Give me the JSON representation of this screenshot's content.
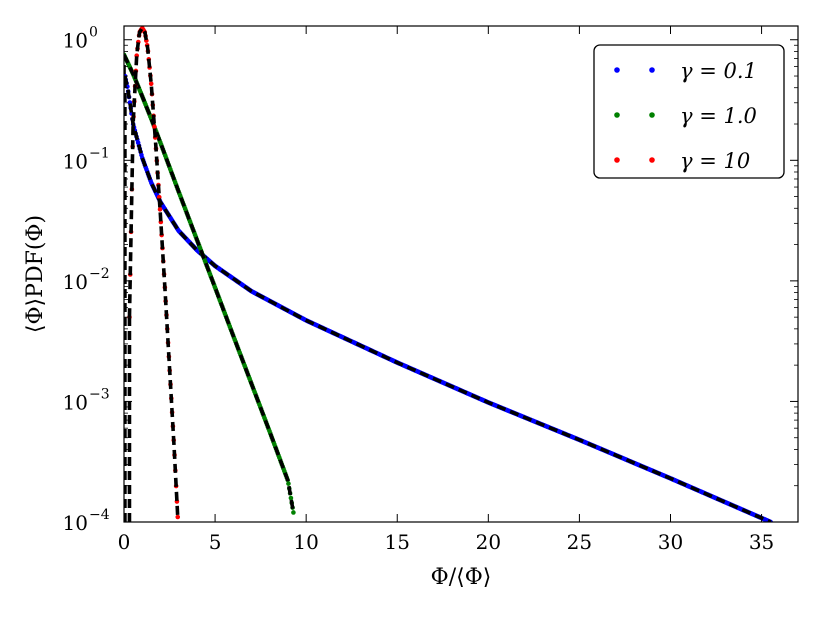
{
  "chart_data": {
    "type": "scatter",
    "title": "",
    "xlabel": "Φ/⟨Φ⟩",
    "ylabel": "⟨Φ⟩PDF(Φ)",
    "xlim": [
      0,
      37
    ],
    "ylim": [
      0.0001,
      1.3
    ],
    "yscale": "log",
    "x_ticks": [
      0,
      5,
      10,
      15,
      20,
      25,
      30,
      35
    ],
    "x_tick_labels": [
      "0",
      "5",
      "10",
      "15",
      "20",
      "25",
      "30",
      "35"
    ],
    "y_ticks": [
      0.0001,
      0.001,
      0.01,
      0.1,
      1
    ],
    "y_tick_labels": [
      "10",
      "10",
      "10",
      "10",
      "10"
    ],
    "y_tick_exponents": [
      "−4",
      "−3",
      "−2",
      "−1",
      "0"
    ],
    "grid": false,
    "legend": "top-right",
    "fit_curve": {
      "color": "#000000",
      "style": "dashed"
    },
    "series": [
      {
        "name": "γ = 0.1",
        "color": "#0000ff",
        "x": [
          0.05,
          0.2,
          0.5,
          1.0,
          1.5,
          2.0,
          3.0,
          4.0,
          5.0,
          7.0,
          10.0,
          15.0,
          20.0,
          25.0,
          30.0,
          35.5
        ],
        "y": [
          0.5,
          0.4,
          0.2,
          0.105,
          0.065,
          0.045,
          0.026,
          0.018,
          0.0133,
          0.0082,
          0.0047,
          0.0021,
          0.00098,
          0.00048,
          0.00023,
          0.0001
        ]
      },
      {
        "name": "γ = 1.0",
        "color": "#008000",
        "x": [
          0.0,
          0.5,
          1.0,
          1.5,
          2.0,
          3.0,
          4.0,
          5.0,
          6.0,
          7.0,
          8.0,
          9.0,
          9.3
        ],
        "y": [
          0.75,
          0.52,
          0.34,
          0.22,
          0.14,
          0.055,
          0.022,
          0.0088,
          0.0035,
          0.0014,
          0.00056,
          0.00022,
          0.00012
        ]
      },
      {
        "name": "γ = 10",
        "color": "#ff0000",
        "x": [
          0.3,
          0.5,
          0.7,
          0.85,
          1.0,
          1.15,
          1.3,
          1.5,
          1.75,
          2.0,
          2.25,
          2.5,
          2.75,
          2.95
        ],
        "y": [
          0.005,
          0.2,
          0.75,
          1.15,
          1.25,
          1.15,
          0.85,
          0.42,
          0.13,
          0.035,
          0.0085,
          0.0019,
          0.00042,
          0.00011
        ]
      }
    ]
  }
}
